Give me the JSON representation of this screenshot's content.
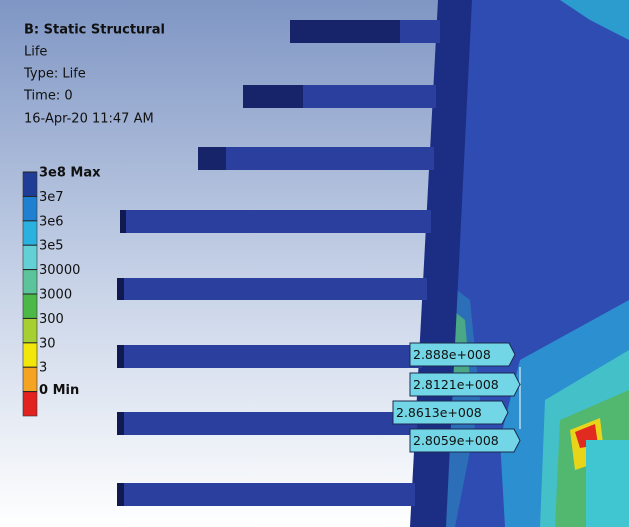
{
  "header": {
    "title": "B: Static Structural",
    "lines": [
      "Life",
      "Type: Life",
      "Time: 0",
      "16-Apr-20 11:47 AM"
    ]
  },
  "legend": {
    "items": [
      {
        "label": "3e8 Max",
        "color": "#1f3d96"
      },
      {
        "label": "3e7",
        "color": "#1f7fd0"
      },
      {
        "label": "3e6",
        "color": "#2bb1e0"
      },
      {
        "label": "3e5",
        "color": "#63d0d6"
      },
      {
        "label": "30000",
        "color": "#5cc49a"
      },
      {
        "label": "3000",
        "color": "#4cb848"
      },
      {
        "label": "300",
        "color": "#a6d032"
      },
      {
        "label": "30",
        "color": "#f3e60a"
      },
      {
        "label": "3",
        "color": "#f4a322"
      },
      {
        "label": "0 Min",
        "color": "#e1221f"
      }
    ]
  },
  "probes": [
    "2.888e+008",
    "2.8121e+008",
    "2.8613e+008",
    "2.8059e+008"
  ]
}
